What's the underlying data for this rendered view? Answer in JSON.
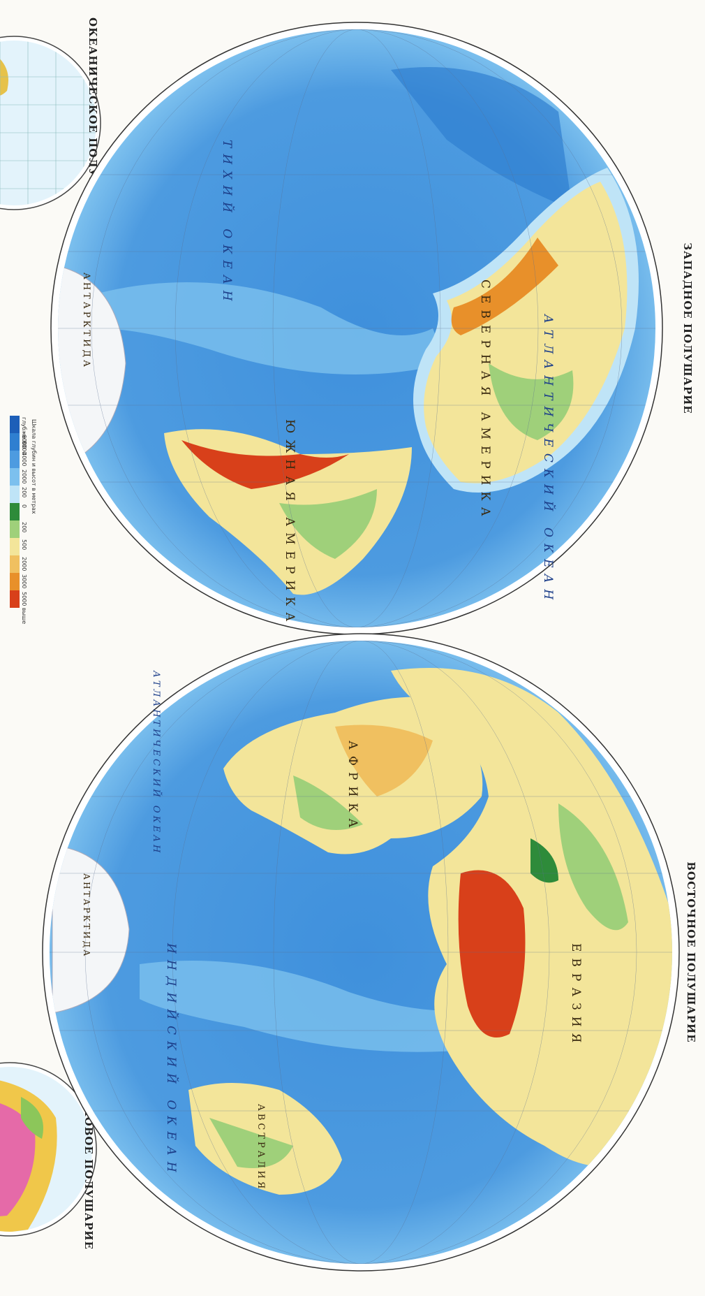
{
  "titles": {
    "western": "ЗАПАДНОЕ ПОЛУШАРИЕ",
    "eastern": "ВОСТОЧНОЕ ПОЛУШАРИЕ",
    "oceanic": "ОКЕАНИЧЕСКОЕ ПОЛУШАРИЕ",
    "continental": "МАТЕРИКОВОЕ ПОЛУШАРИЕ"
  },
  "legend": {
    "title": "Шкала глубин и высот в метрах",
    "items": [
      {
        "label": "глубже 8000",
        "color": "#1d5fb8"
      },
      {
        "label": "6000",
        "color": "#2f7fd0"
      },
      {
        "label": "4000",
        "color": "#4d9be0"
      },
      {
        "label": "2000",
        "color": "#7cc0ee"
      },
      {
        "label": "200",
        "color": "#bfe4f7"
      },
      {
        "label": "0",
        "color": "#2e8b3a"
      },
      {
        "label": "200",
        "color": "#9fd07a"
      },
      {
        "label": "500",
        "color": "#f3e59a"
      },
      {
        "label": "2000",
        "color": "#f0c060"
      },
      {
        "label": "3000",
        "color": "#e8902a"
      },
      {
        "label": "5000 выше",
        "color": "#d8401a"
      }
    ]
  },
  "labels": {
    "western": [
      "ТИХИЙ ОКЕАН",
      "АТЛАНТИЧЕСКИЙ ОКЕАН",
      "СЕВЕРНАЯ АМЕРИКА",
      "ЮЖНАЯ АМЕРИКА",
      "АНТАРКТИДА"
    ],
    "eastern": [
      "ИНДИЙСКИЙ ОКЕАН",
      "АТЛАНТИЧЕСКИЙ ОКЕАН",
      "АФРИКА",
      "ЕВРАЗИЯ",
      "АВСТРАЛИЯ",
      "АНТАРКТИДА"
    ]
  }
}
